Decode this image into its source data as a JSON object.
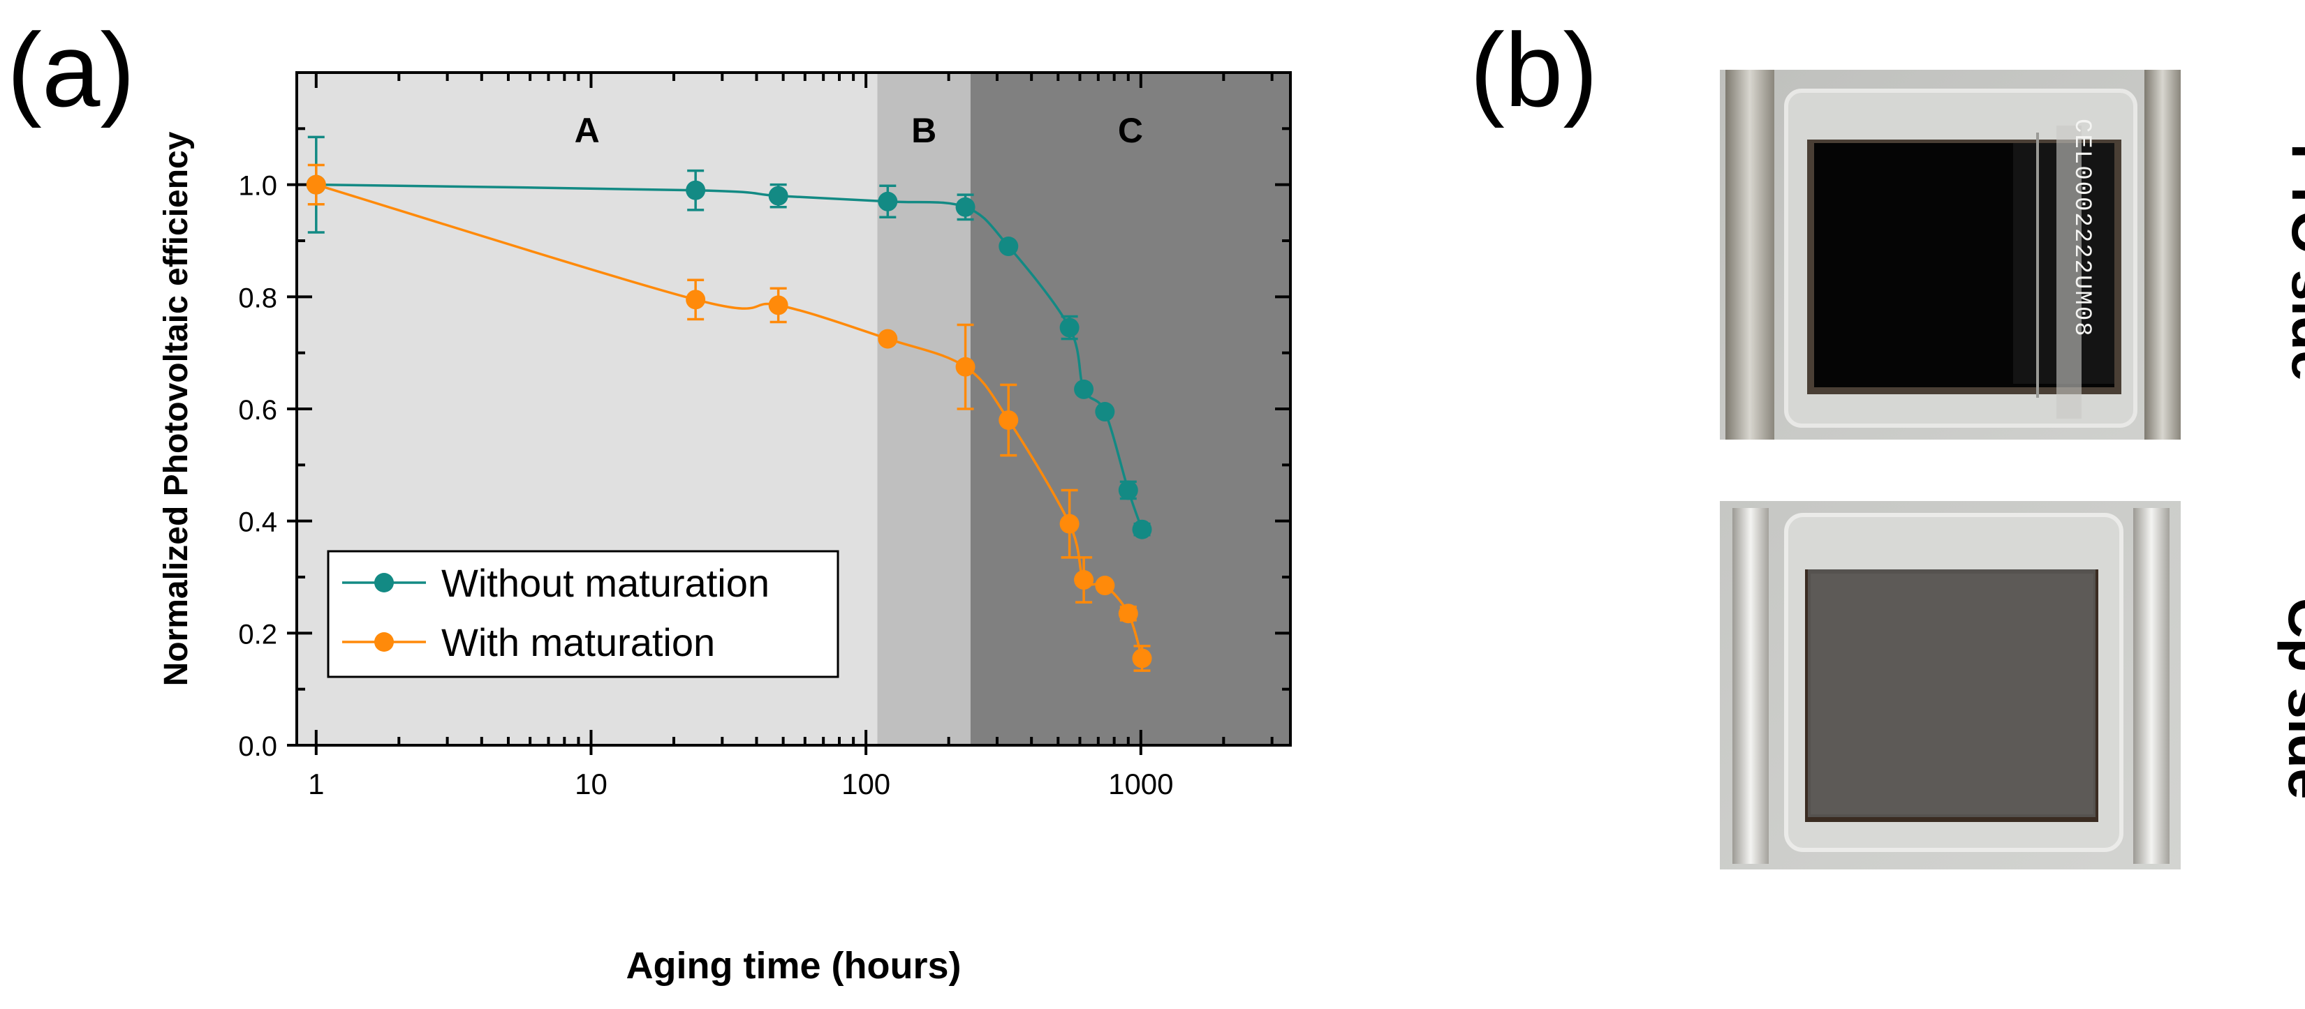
{
  "panels": {
    "a_label": "(a)",
    "b_label": "(b)"
  },
  "chart_data": {
    "type": "line",
    "xscale": "log",
    "xlim": [
      0.85,
      3500
    ],
    "ylim": [
      0.0,
      1.2
    ],
    "xlabel": "Aging time (hours)",
    "ylabel": "Normalized Photovoltaic efficiency",
    "xticks": [
      1,
      10,
      100,
      1000
    ],
    "xtick_labels": [
      "1",
      "10",
      "100",
      "1000"
    ],
    "yticks": [
      0.0,
      0.2,
      0.4,
      0.6,
      0.8,
      1.0
    ],
    "ytick_labels": [
      "0.0",
      "0.2",
      "0.4",
      "0.6",
      "0.8",
      "1.0"
    ],
    "regions": [
      {
        "label": "A",
        "x_start": 0.85,
        "x_end": 110,
        "color": "#e0e0e0"
      },
      {
        "label": "B",
        "x_start": 110,
        "x_end": 240,
        "color": "#bfbfbf"
      },
      {
        "label": "C",
        "x_start": 240,
        "x_end": 3500,
        "color": "#808080"
      }
    ],
    "legend_position": "lower-left",
    "series": [
      {
        "name": "Without maturation",
        "color": "#138a84",
        "x": [
          1,
          24,
          48,
          120,
          230,
          330,
          550,
          620,
          740,
          900,
          1010
        ],
        "y": [
          1.0,
          0.99,
          0.98,
          0.97,
          0.96,
          0.89,
          0.745,
          0.635,
          0.595,
          0.455,
          0.385
        ],
        "err": [
          0.085,
          0.035,
          0.02,
          0.028,
          0.022,
          0.0,
          0.02,
          0.0,
          0.0,
          0.015,
          0.01
        ]
      },
      {
        "name": "With maturation",
        "color": "#ff8a0a",
        "x": [
          1,
          24,
          48,
          120,
          230,
          330,
          550,
          620,
          740,
          900,
          1010
        ],
        "y": [
          1.0,
          0.795,
          0.785,
          0.725,
          0.675,
          0.58,
          0.395,
          0.295,
          0.285,
          0.235,
          0.155
        ],
        "err": [
          0.035,
          0.035,
          0.03,
          0.0,
          0.075,
          0.063,
          0.06,
          0.04,
          0.0,
          0.012,
          0.022
        ]
      }
    ]
  },
  "photos": {
    "fto_label": "FTO side",
    "cp_label": "Cp side",
    "fto_etched_text": "CEL0002222UM08"
  }
}
